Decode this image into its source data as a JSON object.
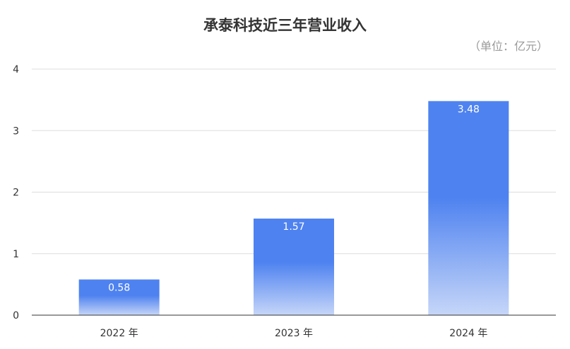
{
  "chart_data": {
    "type": "bar",
    "title": "承泰科技近三年营业收入",
    "unit_label": "（单位：亿元）",
    "categories": [
      "2022 年",
      "2023 年",
      "2024 年"
    ],
    "values": [
      0.58,
      1.57,
      3.48
    ],
    "data_labels": [
      "0.58",
      "1.57",
      "3.48"
    ],
    "ylim": [
      0,
      4
    ],
    "yticks": [
      0,
      1,
      2,
      3,
      4
    ],
    "ytick_labels": [
      "0",
      "1",
      "2",
      "3",
      "4"
    ],
    "xlabel": "",
    "ylabel": "",
    "grid": true,
    "legend": "none",
    "colors": {
      "bar_top": "#4e82f0",
      "bar_bottom": "#c6d6f8",
      "grid": "#dddddd",
      "axis": "#333333"
    }
  }
}
